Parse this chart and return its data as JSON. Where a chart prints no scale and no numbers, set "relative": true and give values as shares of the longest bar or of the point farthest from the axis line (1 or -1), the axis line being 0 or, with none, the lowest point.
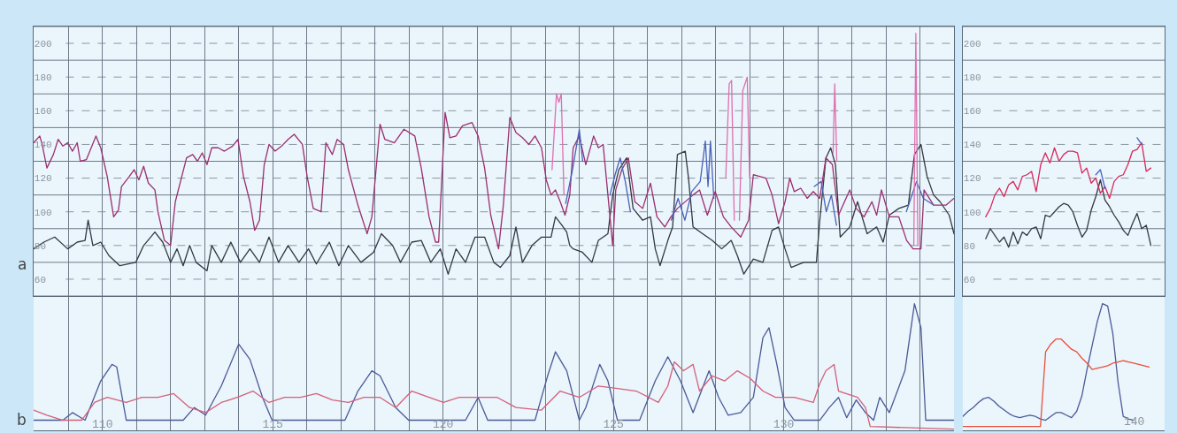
{
  "chart_data": [
    {
      "type": "line",
      "annotations": [
        "a"
      ],
      "grid": true,
      "tick_labels": "y",
      "xlim": [
        107.98,
        135
      ],
      "ylim": [
        50,
        210
      ],
      "xticks": [
        {
          "value": 108,
          "label": null
        },
        {
          "value": 109,
          "label": null
        },
        {
          "value": 110,
          "label": null
        },
        {
          "value": 111,
          "label": null
        },
        {
          "value": 112,
          "label": null
        },
        {
          "value": 113,
          "label": null
        },
        {
          "value": 114,
          "label": null
        },
        {
          "value": 115,
          "label": null
        },
        {
          "value": 116,
          "label": null
        },
        {
          "value": 117,
          "label": null
        },
        {
          "value": 118,
          "label": null
        },
        {
          "value": 119,
          "label": null
        },
        {
          "value": 120,
          "label": null
        },
        {
          "value": 121,
          "label": null
        },
        {
          "value": 122,
          "label": null
        },
        {
          "value": 123,
          "label": null
        },
        {
          "value": 124,
          "label": null
        },
        {
          "value": 125,
          "label": null
        },
        {
          "value": 126,
          "label": null
        },
        {
          "value": 127,
          "label": null
        },
        {
          "value": 128,
          "label": null
        },
        {
          "value": 129,
          "label": null
        },
        {
          "value": 130,
          "label": null
        },
        {
          "value": 131,
          "label": null
        },
        {
          "value": 132,
          "label": null
        },
        {
          "value": 133,
          "label": null
        },
        {
          "value": 134,
          "label": null
        },
        {
          "value": 135,
          "label": null
        }
      ],
      "yticks": [
        {
          "value": 50,
          "label": null
        },
        60,
        {
          "value": 70,
          "label": null
        },
        80,
        {
          "value": 90,
          "label": null
        },
        100,
        {
          "value": 110,
          "label": null
        },
        120,
        {
          "value": 130,
          "label": null
        },
        140,
        {
          "value": 150,
          "label": null
        },
        160,
        {
          "value": 170,
          "label": null
        },
        180,
        {
          "value": 190,
          "label": null
        },
        200,
        {
          "value": 210,
          "label": null
        }
      ],
      "series": [
        {
          "color": "#333840",
          "x": [
            107.98,
            108.28,
            108.6,
            108.98,
            109.26,
            109.49,
            109.58,
            109.72,
            109.95,
            110.19,
            110.51,
            110.98,
            111.21,
            111.54,
            111.77,
            112.0,
            112.19,
            112.37,
            112.56,
            112.75,
            113.07,
            113.21,
            113.49,
            113.77,
            114.05,
            114.33,
            114.61,
            114.89,
            115.17,
            115.45,
            115.77,
            116.05,
            116.28,
            116.66,
            116.94,
            117.22,
            117.59,
            117.96,
            118.19,
            118.52,
            118.75,
            119.08,
            119.36,
            119.64,
            119.92,
            120.15,
            120.38,
            120.66,
            120.94,
            121.22,
            121.49,
            121.68,
            121.96,
            122.14,
            122.33,
            122.61,
            122.89,
            123.17,
            123.3,
            123.49,
            123.63,
            123.72,
            123.82,
            124.09,
            124.37,
            124.56,
            124.84,
            124.98,
            125.16,
            125.39,
            125.58,
            125.86,
            126.09,
            126.23,
            126.37,
            126.6,
            126.74,
            126.88,
            127.11,
            127.2,
            127.34,
            127.62,
            127.9,
            128.18,
            128.46,
            128.64,
            128.83,
            129.11,
            129.39,
            129.66,
            129.85,
            130.04,
            130.22,
            130.59,
            130.96,
            131.06,
            131.24,
            131.38,
            131.52,
            131.66,
            131.94,
            132.17,
            132.45,
            132.73,
            132.92,
            133.1,
            133.38,
            133.66,
            133.84,
            134.03,
            134.21,
            134.4,
            134.59,
            134.86,
            135.0
          ],
          "values": [
            78,
            82,
            85,
            78,
            82,
            83,
            95,
            80,
            82,
            74,
            68,
            70,
            80,
            88,
            82,
            70,
            78,
            68,
            80,
            70,
            65,
            80,
            70,
            82,
            70,
            78,
            70,
            85,
            70,
            80,
            70,
            78,
            69,
            82,
            68,
            80,
            70,
            76,
            87,
            80,
            70,
            82,
            83,
            70,
            78,
            63,
            78,
            70,
            85,
            85,
            70,
            67,
            74,
            91,
            70,
            80,
            85,
            85,
            97,
            92,
            88,
            80,
            78,
            76,
            70,
            83,
            87,
            110,
            125,
            132,
            102,
            95,
            97,
            78,
            68,
            83,
            91,
            134,
            136,
            121,
            91,
            87,
            83,
            78,
            83,
            74,
            63,
            72,
            70,
            89,
            91,
            78,
            67,
            70,
            70,
            95,
            132,
            138,
            128,
            85,
            91,
            106,
            87,
            91,
            82,
            98,
            102,
            104,
            134,
            140,
            121,
            110,
            106,
            98,
            87
          ]
        },
        {
          "color": "#9b2f6f",
          "x": [
            107.98,
            108.16,
            108.23,
            108.37,
            108.56,
            108.7,
            108.84,
            108.98,
            109.12,
            109.26,
            109.35,
            109.53,
            109.81,
            109.95,
            110.14,
            110.33,
            110.47,
            110.56,
            110.79,
            110.93,
            111.07,
            111.21,
            111.35,
            111.54,
            111.63,
            111.82,
            112.0,
            112.14,
            112.33,
            112.47,
            112.65,
            112.79,
            112.93,
            113.07,
            113.21,
            113.4,
            113.58,
            113.82,
            113.98,
            114.14,
            114.33,
            114.47,
            114.61,
            114.75,
            114.89,
            115.07,
            115.26,
            115.45,
            115.63,
            115.87,
            116.01,
            116.19,
            116.42,
            116.56,
            116.75,
            116.89,
            117.08,
            117.22,
            117.5,
            117.77,
            117.91,
            118.15,
            118.29,
            118.57,
            118.85,
            119.17,
            119.36,
            119.59,
            119.78,
            119.87,
            120.06,
            120.2,
            120.38,
            120.57,
            120.85,
            121.03,
            121.22,
            121.4,
            121.63,
            121.77,
            121.96,
            122.14,
            122.33,
            122.52,
            122.7,
            122.89,
            123.03,
            123.17,
            123.3,
            123.44,
            123.58,
            123.72,
            123.82,
            124.0,
            124.19,
            124.42,
            124.56,
            124.7,
            124.84,
            124.98,
            125.07,
            125.25,
            125.44,
            125.63,
            125.86,
            126.09,
            126.28,
            126.51,
            126.69,
            126.88,
            127.34,
            127.53,
            127.76,
            127.99,
            128.23,
            128.46,
            128.74,
            128.97,
            129.11,
            129.29,
            129.48,
            129.66,
            129.85,
            130.04,
            130.18,
            130.31,
            130.5,
            130.69,
            130.87,
            131.06,
            131.24,
            131.43,
            131.61,
            131.94,
            132.13,
            132.36,
            132.59,
            132.73,
            132.87,
            133.1,
            133.38,
            133.61,
            133.8,
            134.03,
            134.12,
            134.4,
            134.77,
            135.0
          ],
          "values": [
            141,
            145,
            140,
            126,
            134,
            143,
            139,
            141,
            136,
            141,
            130,
            131,
            145,
            138,
            121,
            97,
            101,
            115,
            121,
            125,
            119,
            127,
            117,
            113,
            100,
            83,
            80,
            106,
            121,
            132,
            134,
            130,
            135,
            128,
            138,
            138,
            136,
            139,
            143,
            121,
            106,
            89,
            95,
            128,
            140,
            136,
            139,
            143,
            146,
            140,
            121,
            102,
            100,
            141,
            134,
            143,
            140,
            125,
            104,
            87,
            97,
            152,
            143,
            141,
            149,
            145,
            126,
            97,
            82,
            82,
            159,
            144,
            145,
            151,
            153,
            145,
            126,
            98,
            78,
            104,
            156,
            147,
            144,
            140,
            145,
            138,
            119,
            110,
            113,
            106,
            98,
            110,
            138,
            145,
            128,
            145,
            138,
            140,
            110,
            80,
            113,
            125,
            132,
            106,
            102,
            117,
            97,
            91,
            97,
            102,
            110,
            113,
            98,
            112,
            97,
            91,
            85,
            95,
            122,
            121,
            120,
            110,
            93,
            106,
            120,
            112,
            114,
            108,
            112,
            108,
            132,
            128,
            98,
            113,
            102,
            97,
            106,
            98,
            113,
            97,
            97,
            83,
            78,
            78,
            113,
            104,
            104,
            108
          ]
        },
        {
          "color": "#4a62b8",
          "x": [
            123.6,
            123.8,
            124.0,
            124.1,
            124.15,
            124.9,
            125.05,
            125.2,
            125.35,
            125.5,
            125.55,
            126.7,
            126.9,
            127.1,
            127.3,
            127.55,
            127.7,
            127.78,
            127.85,
            127.95,
            128.0,
            130.9,
            131.1,
            131.25,
            131.4,
            131.55,
            131.6,
            133.6,
            133.9,
            134.1,
            134.4
          ],
          "values": [
            105,
            125,
            149,
            130,
            null,
            110,
            122,
            132,
            118,
            100,
            null,
            95,
            108,
            95,
            112,
            118,
            142,
            115,
            142,
            108,
            null,
            115,
            118,
            100,
            110,
            92,
            null,
            100,
            118,
            108,
            104
          ]
        },
        {
          "color": "#e070b0",
          "x": [
            123.2,
            123.33,
            123.4,
            123.47,
            123.55,
            123.6,
            128.3,
            128.4,
            128.47,
            128.55,
            128.6,
            128.7,
            128.8,
            128.93,
            129.0,
            129.05,
            131.45,
            131.5,
            131.56,
            131.6,
            133.82,
            133.88,
            133.94
          ],
          "values": [
            125,
            170,
            165,
            170,
            110,
            null,
            120,
            176,
            178,
            95,
            null,
            95,
            172,
            180,
            120,
            null,
            135,
            176,
            130,
            null,
            80,
            206,
            80
          ]
        }
      ]
    },
    {
      "type": "line",
      "annotations": [
        "b"
      ],
      "relative": true,
      "grid": "x",
      "tick_labels": "x",
      "xlim": [
        107.98,
        135
      ],
      "xticks": [
        {
          "value": 108,
          "label": null
        },
        {
          "value": 109,
          "label": null
        },
        110,
        {
          "value": 111,
          "label": null
        },
        {
          "value": 112,
          "label": null
        },
        {
          "value": 113,
          "label": null
        },
        {
          "value": 114,
          "label": null
        },
        115,
        {
          "value": 116,
          "label": null
        },
        {
          "value": 117,
          "label": null
        },
        {
          "value": 118,
          "label": null
        },
        {
          "value": 119,
          "label": null
        },
        120,
        {
          "value": 121,
          "label": null
        },
        {
          "value": 122,
          "label": null
        },
        {
          "value": 123,
          "label": null
        },
        {
          "value": 124,
          "label": null
        },
        125,
        {
          "value": 126,
          "label": null
        },
        {
          "value": 127,
          "label": null
        },
        {
          "value": 128,
          "label": null
        },
        {
          "value": 129,
          "label": null
        },
        130,
        {
          "value": 131,
          "label": null
        },
        {
          "value": 132,
          "label": null
        },
        {
          "value": 133,
          "label": null
        },
        {
          "value": 134,
          "label": null
        },
        {
          "value": 135,
          "label": null
        }
      ],
      "series": [
        {
          "color": "#4b5a96",
          "x": [
            107.98,
            108.84,
            109.12,
            109.49,
            109.95,
            110.28,
            110.42,
            110.7,
            112.37,
            112.7,
            113.03,
            113.49,
            114.0,
            114.33,
            114.7,
            114.98,
            117.12,
            117.5,
            117.91,
            118.15,
            118.61,
            118.99,
            120.66,
            121.03,
            121.31,
            122.7,
            123.07,
            123.3,
            123.63,
            124.0,
            124.19,
            124.6,
            124.84,
            125.12,
            125.77,
            126.23,
            126.6,
            126.97,
            127.34,
            127.81,
            128.09,
            128.37,
            128.74,
            129.11,
            129.39,
            129.57,
            129.8,
            130.04,
            130.31,
            131.06,
            131.34,
            131.61,
            131.85,
            132.13,
            132.4,
            132.64,
            132.82,
            133.1,
            133.56,
            133.84,
            134.03,
            134.17,
            135.0
          ],
          "values": [
            0.08,
            0.08,
            0.14,
            0.08,
            0.39,
            0.52,
            0.5,
            0.08,
            0.08,
            0.18,
            0.12,
            0.35,
            0.68,
            0.56,
            0.26,
            0.08,
            0.08,
            0.31,
            0.47,
            0.43,
            0.18,
            0.08,
            0.08,
            0.26,
            0.08,
            0.08,
            0.43,
            0.62,
            0.47,
            0.08,
            0.18,
            0.52,
            0.39,
            0.08,
            0.08,
            0.39,
            0.58,
            0.39,
            0.14,
            0.47,
            0.26,
            0.12,
            0.14,
            0.26,
            0.73,
            0.81,
            0.52,
            0.18,
            0.08,
            0.08,
            0.18,
            0.26,
            0.1,
            0.24,
            0.14,
            0.08,
            0.26,
            0.14,
            0.47,
            1,
            0.81,
            0.08,
            0.08
          ]
        },
        {
          "color": "#d4607a",
          "x": [
            107.98,
            108.37,
            108.84,
            109.39,
            109.77,
            110.14,
            110.7,
            111.16,
            111.63,
            112.09,
            112.56,
            113.03,
            113.49,
            113.96,
            114.42,
            114.89,
            115.35,
            115.82,
            116.28,
            116.75,
            117.22,
            117.68,
            118.15,
            118.61,
            119.08,
            120.01,
            120.47,
            121.03,
            121.59,
            122.14,
            122.89,
            123.44,
            124.0,
            124.56,
            125.12,
            125.67,
            126.04,
            126.32,
            126.6,
            126.79,
            127.06,
            127.34,
            127.53,
            127.9,
            128.27,
            128.64,
            129.02,
            129.39,
            129.76,
            130.31,
            130.87,
            131.06,
            131.24,
            131.48,
            131.61,
            132.17,
            132.4,
            132.54,
            135.0
          ],
          "values": [
            0.16,
            0.12,
            0.08,
            0.08,
            0.22,
            0.26,
            0.22,
            0.26,
            0.26,
            0.29,
            0.18,
            0.14,
            0.22,
            0.26,
            0.31,
            0.22,
            0.26,
            0.26,
            0.29,
            0.24,
            0.22,
            0.26,
            0.26,
            0.18,
            0.31,
            0.22,
            0.26,
            0.26,
            0.26,
            0.18,
            0.16,
            0.31,
            0.26,
            0.35,
            0.33,
            0.31,
            0.26,
            0.22,
            0.35,
            0.54,
            0.47,
            0.52,
            0.31,
            0.43,
            0.39,
            0.47,
            0.41,
            0.31,
            0.26,
            0.26,
            0.22,
            0.37,
            0.47,
            0.52,
            0.31,
            0.26,
            0.18,
            0.03,
            0.01
          ]
        }
      ]
    },
    {
      "type": "line",
      "grid": "y",
      "tick_labels": "y",
      "categories": [
        null,
        null,
        null,
        null,
        null,
        null,
        null,
        null,
        null,
        null,
        null,
        null,
        null,
        null,
        null,
        null,
        null,
        null,
        null,
        null,
        null,
        null,
        null,
        null,
        null,
        null,
        null,
        null,
        null,
        null,
        null,
        null,
        null,
        null,
        null,
        null,
        null,
        null,
        null,
        null
      ],
      "ylim": [
        50,
        210
      ],
      "yticks": [
        {
          "value": 50,
          "label": null
        },
        60,
        {
          "value": 70,
          "label": null
        },
        80,
        {
          "value": 90,
          "label": null
        },
        100,
        {
          "value": 110,
          "label": null
        },
        120,
        {
          "value": 130,
          "label": null
        },
        140,
        {
          "value": 150,
          "label": null
        },
        160,
        {
          "value": 170,
          "label": null
        },
        180,
        {
          "value": 190,
          "label": null
        },
        200,
        {
          "value": 210,
          "label": null
        }
      ],
      "series": [
        {
          "color": "#333840",
          "values": [
            84,
            90,
            86,
            82,
            85,
            79,
            88,
            81,
            88,
            86,
            90,
            91,
            84,
            98,
            97,
            100,
            103,
            105,
            104,
            100,
            92,
            85,
            89,
            101,
            109,
            119,
            107,
            103,
            98,
            94,
            89,
            86,
            93,
            99,
            90,
            92,
            80,
            null,
            null,
            null
          ]
        },
        {
          "color": "#d8285a",
          "values": [
            97,
            102,
            110,
            114,
            109,
            116,
            118,
            113,
            121,
            122,
            124,
            112,
            128,
            135,
            129,
            138,
            130,
            134,
            136,
            136,
            135,
            123,
            126,
            117,
            120,
            111,
            115,
            108,
            118,
            121,
            122,
            128,
            136,
            137,
            141,
            124,
            126,
            null,
            null,
            null
          ]
        },
        {
          "color": "#4a62d0",
          "values": [
            null,
            null,
            null,
            null,
            null,
            null,
            null,
            null,
            null,
            null,
            null,
            null,
            null,
            null,
            null,
            null,
            null,
            null,
            null,
            null,
            null,
            null,
            null,
            null,
            122,
            125,
            114,
            null,
            null,
            null,
            null,
            null,
            null,
            144,
            140,
            null,
            null,
            null,
            null,
            null
          ]
        }
      ]
    },
    {
      "type": "line",
      "relative": true,
      "tick_labels": false,
      "annotations": [
        "140"
      ],
      "categories": [
        null,
        null,
        null,
        null,
        null,
        null,
        null,
        null,
        null,
        null,
        null,
        null,
        null,
        null,
        null,
        null,
        null,
        null,
        null,
        null,
        null,
        null,
        null,
        null,
        null,
        null,
        null,
        null,
        null,
        null,
        null,
        null,
        null,
        null,
        null,
        null,
        null,
        null,
        null,
        null
      ],
      "series": [
        {
          "color": "#4b5a96",
          "values": [
            0.11,
            0.15,
            0.18,
            0.22,
            0.25,
            0.26,
            0.23,
            0.19,
            0.16,
            0.13,
            0.11,
            0.1,
            0.11,
            0.12,
            0.11,
            0.09,
            0.08,
            0.11,
            0.14,
            0.14,
            0.12,
            0.1,
            0.15,
            0.27,
            0.48,
            0.67,
            0.86,
            1,
            0.98,
            0.76,
            0.38,
            0.11,
            0.09,
            0.08,
            null,
            null,
            null,
            null,
            null,
            null
          ]
        },
        {
          "color": "#e8503a",
          "values": [
            0.03,
            0.03,
            0.03,
            0.03,
            0.03,
            0.03,
            0.03,
            0.03,
            0.03,
            0.03,
            0.03,
            0.03,
            0.03,
            0.03,
            0.03,
            0.03,
            0.62,
            0.68,
            0.72,
            0.72,
            0.68,
            0.64,
            0.62,
            0.57,
            0.53,
            0.48,
            0.49,
            0.5,
            0.51,
            0.53,
            0.54,
            0.55,
            0.54,
            0.53,
            0.52,
            0.51,
            0.5,
            null,
            null,
            null
          ]
        }
      ]
    }
  ]
}
